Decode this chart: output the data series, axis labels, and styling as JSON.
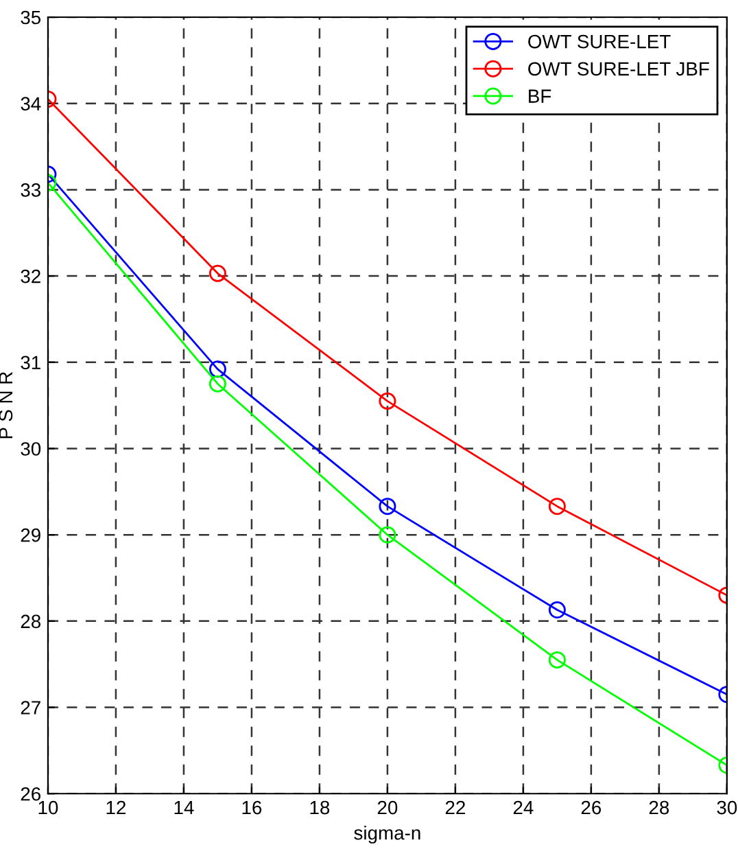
{
  "chart_data": {
    "type": "line",
    "xlabel": "sigma-n",
    "ylabel": "P S N R",
    "x": [
      10,
      15,
      20,
      25,
      30
    ],
    "series": [
      {
        "name": "OWT SURE-LET",
        "color": "#0000ff",
        "values": [
          33.18,
          30.92,
          29.33,
          28.13,
          27.15
        ]
      },
      {
        "name": "OWT SURE-LET JBF",
        "color": "#ff0000",
        "values": [
          34.05,
          32.03,
          30.55,
          29.33,
          28.3
        ]
      },
      {
        "name": "BF",
        "color": "#00ff00",
        "values": [
          33.08,
          30.75,
          29.0,
          27.55,
          26.33
        ]
      }
    ],
    "xlim": [
      10,
      30
    ],
    "ylim": [
      26,
      35
    ],
    "xticks": [
      10,
      12,
      14,
      16,
      18,
      20,
      22,
      24,
      26,
      28,
      30
    ],
    "yticks": [
      26,
      27,
      28,
      29,
      30,
      31,
      32,
      33,
      34,
      35
    ],
    "grid": true,
    "legend": "top right",
    "marker": "circle",
    "line_style": "solid"
  }
}
